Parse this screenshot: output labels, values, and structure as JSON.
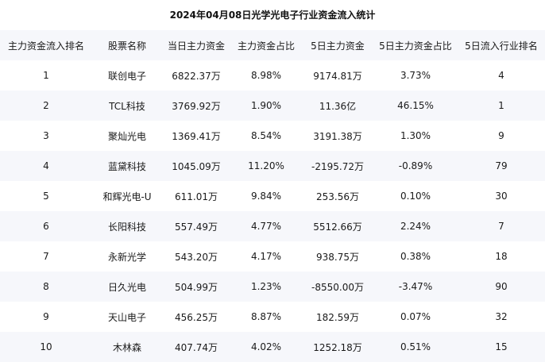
{
  "title": "2024年04月08日光学光电子行业资金流入统计",
  "headers": [
    "主力资金流入排名",
    "股票名称",
    "当日主力资金",
    "主力资金占比",
    "5日主力资金",
    "5日主力资金占比",
    "5日流入行业排名"
  ],
  "rows": [
    [
      "1",
      "联创电子",
      "6822.37万",
      "8.98%",
      "9174.81万",
      "3.73%",
      "4"
    ],
    [
      "2",
      "TCL科技",
      "3769.92万",
      "1.90%",
      "11.36亿",
      "46.15%",
      "1"
    ],
    [
      "3",
      "聚灿光电",
      "1369.41万",
      "8.54%",
      "3191.38万",
      "1.30%",
      "9"
    ],
    [
      "4",
      "蓝黛科技",
      "1045.09万",
      "11.20%",
      "-2195.72万",
      "-0.89%",
      "79"
    ],
    [
      "5",
      "和辉光电-U",
      "611.01万",
      "9.84%",
      "253.56万",
      "0.10%",
      "30"
    ],
    [
      "6",
      "长阳科技",
      "557.49万",
      "4.77%",
      "5512.66万",
      "2.24%",
      "7"
    ],
    [
      "7",
      "永新光学",
      "543.20万",
      "4.17%",
      "938.75万",
      "0.38%",
      "18"
    ],
    [
      "8",
      "日久光电",
      "504.99万",
      "1.23%",
      "-8550.00万",
      "-3.47%",
      "90"
    ],
    [
      "9",
      "天山电子",
      "456.25万",
      "8.87%",
      "182.59万",
      "0.07%",
      "32"
    ],
    [
      "10",
      "木林森",
      "407.74万",
      "4.02%",
      "1252.18万",
      "0.51%",
      "15"
    ]
  ]
}
